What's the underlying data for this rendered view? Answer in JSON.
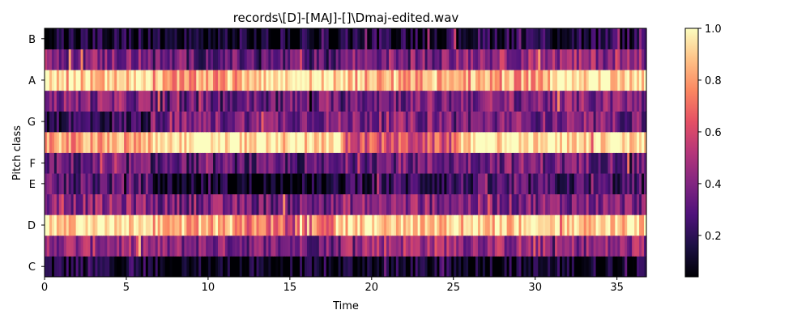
{
  "chart_data": {
    "type": "heatmap",
    "title": "records\\[D]-[MAJ]-[]\\Dmaj-edited.wav",
    "xlabel": "Time",
    "ylabel": "Pitch class",
    "xlim": [
      0,
      36.8
    ],
    "x_ticks": [
      0,
      5,
      10,
      15,
      20,
      25,
      30,
      35
    ],
    "x_tick_labels": [
      "0",
      "5",
      "10",
      "15",
      "20",
      "25",
      "30",
      "35"
    ],
    "rows": [
      "C",
      "C#",
      "D",
      "D#",
      "E",
      "F",
      "F#",
      "G",
      "G#",
      "A",
      "A#",
      "B"
    ],
    "y_tick_labels": [
      "C",
      "D",
      "E",
      "F",
      "G",
      "A",
      "B"
    ],
    "y_tick_rows": [
      0,
      2,
      4,
      5,
      7,
      9,
      11
    ],
    "colorbar": {
      "min": 0.04,
      "max": 1.0,
      "ticks": [
        0.2,
        0.4,
        0.6,
        0.8,
        1.0
      ],
      "tick_labels": [
        "0.2",
        "0.4",
        "0.6",
        "0.8",
        "1.0"
      ]
    },
    "segments": [
      {
        "start": 0.0,
        "end": 6.5,
        "values": [
          0.15,
          0.45,
          0.95,
          0.42,
          0.3,
          0.32,
          0.8,
          0.22,
          0.4,
          0.92,
          0.4,
          0.12
        ]
      },
      {
        "start": 6.5,
        "end": 12.0,
        "values": [
          0.07,
          0.4,
          0.85,
          0.38,
          0.1,
          0.3,
          0.97,
          0.38,
          0.32,
          0.8,
          0.32,
          0.1
        ]
      },
      {
        "start": 12.0,
        "end": 18.3,
        "values": [
          0.06,
          0.38,
          0.72,
          0.36,
          0.08,
          0.28,
          0.93,
          0.4,
          0.34,
          0.95,
          0.3,
          0.09
        ]
      },
      {
        "start": 18.3,
        "end": 25.3,
        "values": [
          0.1,
          0.5,
          0.92,
          0.42,
          0.22,
          0.36,
          0.62,
          0.4,
          0.38,
          0.85,
          0.4,
          0.16
        ]
      },
      {
        "start": 25.3,
        "end": 30.9,
        "values": [
          0.1,
          0.45,
          0.9,
          0.4,
          0.25,
          0.38,
          0.97,
          0.38,
          0.4,
          0.82,
          0.45,
          0.18
        ]
      },
      {
        "start": 30.9,
        "end": 36.8,
        "values": [
          0.1,
          0.42,
          0.92,
          0.4,
          0.24,
          0.36,
          0.95,
          0.36,
          0.4,
          0.97,
          0.44,
          0.16
        ]
      }
    ]
  }
}
